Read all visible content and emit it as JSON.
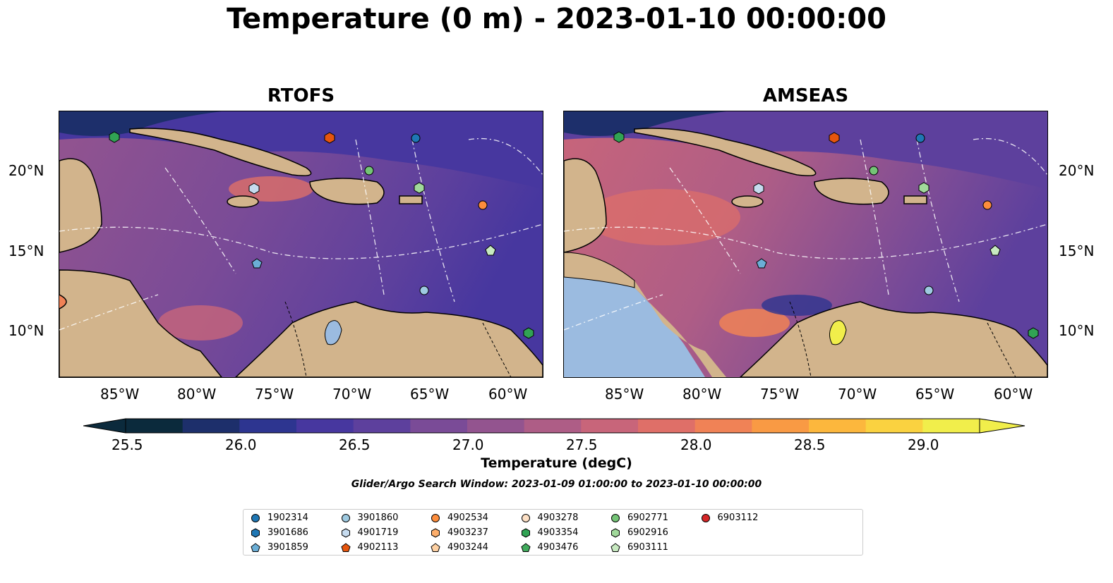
{
  "title": "Temperature (0 m) - 2023-01-10 00:00:00",
  "panels": [
    {
      "title": "RTOFS"
    },
    {
      "title": "AMSEAS"
    }
  ],
  "lon_ticks": [
    "85°W",
    "80°W",
    "75°W",
    "70°W",
    "65°W",
    "60°W"
  ],
  "lat_ticks": [
    "20°N",
    "15°N",
    "10°N"
  ],
  "colorbar": {
    "label": "Temperature (degC)",
    "ticks": [
      "25.5",
      "26.0",
      "26.5",
      "27.0",
      "27.5",
      "28.0",
      "28.5",
      "29.0"
    ],
    "colors": [
      "#0b2a3c",
      "#1d2f6b",
      "#2d3590",
      "#47379f",
      "#5d409d",
      "#7a4b97",
      "#93548f",
      "#ae5d86",
      "#c8657a",
      "#df6f68",
      "#f08256",
      "#f99a44",
      "#fcb73d",
      "#fad240",
      "#f1ee4b"
    ]
  },
  "colorbar_label": "Temperature (degC)",
  "search_window": "Glider/Argo Search Window: 2023-01-09 01:00:00 to 2023-01-10 00:00:00",
  "legend": [
    {
      "id": "1902314",
      "marker": "circle",
      "color": "#1f77b4"
    },
    {
      "id": "3901686",
      "marker": "hexagon",
      "color": "#1f77b4"
    },
    {
      "id": "3901859",
      "marker": "pentagon",
      "color": "#6baed6"
    },
    {
      "id": "3901860",
      "marker": "circle",
      "color": "#9ecae1"
    },
    {
      "id": "4901719",
      "marker": "hexagon",
      "color": "#c6dbef"
    },
    {
      "id": "4902113",
      "marker": "pentagon",
      "color": "#e6550d"
    },
    {
      "id": "4902534",
      "marker": "circle",
      "color": "#fd8d3c"
    },
    {
      "id": "4903237",
      "marker": "hexagon",
      "color": "#fdae6b"
    },
    {
      "id": "4903244",
      "marker": "pentagon",
      "color": "#fdd0a2"
    },
    {
      "id": "4903278",
      "marker": "circle",
      "color": "#fde0c5"
    },
    {
      "id": "4903354",
      "marker": "hexagon",
      "color": "#31a354"
    },
    {
      "id": "4903476",
      "marker": "pentagon",
      "color": "#41ab5d"
    },
    {
      "id": "6902771",
      "marker": "circle",
      "color": "#74c476"
    },
    {
      "id": "6902916",
      "marker": "hexagon",
      "color": "#a1d99b"
    },
    {
      "id": "6903111",
      "marker": "pentagon",
      "color": "#c7e9c0"
    },
    {
      "id": "6903112",
      "marker": "circle",
      "color": "#d62728"
    }
  ],
  "colors": {
    "land": "#d2b48c",
    "ocean_mid": "#7a4b97",
    "ocean_deep": "#47379f",
    "lake": "#9bbbe0"
  }
}
